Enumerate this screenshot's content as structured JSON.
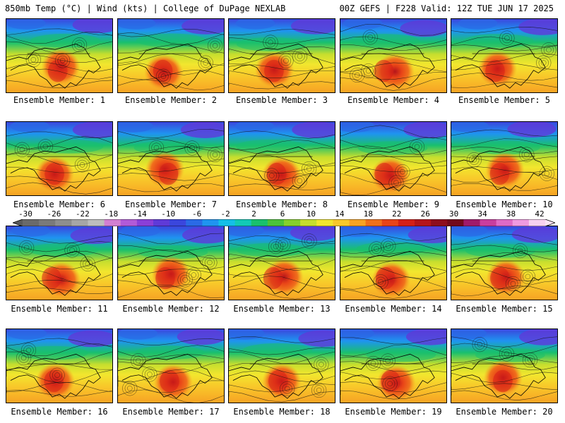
{
  "header": {
    "left_title": "850mb Temp (°C) | Wind (kts) | College of DuPage NEXLAB",
    "right_title": "00Z GEFS | F228 Valid: 12Z TUE JUN 17 2025"
  },
  "colorbar": {
    "labels": [
      "-30",
      "-26",
      "-22",
      "-18",
      "-14",
      "-10",
      "-6",
      "-2",
      "2",
      "6",
      "10",
      "14",
      "18",
      "22",
      "26",
      "30",
      "34",
      "38",
      "42"
    ],
    "colors": [
      "#6a6a6a",
      "#7a7a7a",
      "#8e8e8e",
      "#a6a6a6",
      "#bdbdbd",
      "#d27fd2",
      "#b25ad8",
      "#8a3fd8",
      "#5f3ad8",
      "#3a46dd",
      "#2a6ae6",
      "#1f94f0",
      "#14bfe8",
      "#12c9b6",
      "#19c06d",
      "#4cc23a",
      "#86d02c",
      "#c6de2e",
      "#f2e62e",
      "#f8c82a",
      "#f7a324",
      "#f0701c",
      "#e84318",
      "#d51f17",
      "#b5141a",
      "#8e0d1d",
      "#72091c",
      "#a01a6a",
      "#c93d9e",
      "#e06ac6",
      "#f09ae0",
      "#f8d1f0"
    ]
  },
  "members": [
    {
      "label": "Ensemble Member: 1"
    },
    {
      "label": "Ensemble Member: 2"
    },
    {
      "label": "Ensemble Member: 3"
    },
    {
      "label": "Ensemble Member: 4"
    },
    {
      "label": "Ensemble Member: 5"
    },
    {
      "label": "Ensemble Member: 6"
    },
    {
      "label": "Ensemble Member: 7"
    },
    {
      "label": "Ensemble Member: 8"
    },
    {
      "label": "Ensemble Member: 9"
    },
    {
      "label": "Ensemble Member: 10"
    },
    {
      "label": "Ensemble Member: 11"
    },
    {
      "label": "Ensemble Member: 12"
    },
    {
      "label": "Ensemble Member: 13"
    },
    {
      "label": "Ensemble Member: 14"
    },
    {
      "label": "Ensemble Member: 15"
    },
    {
      "label": "Ensemble Member: 16"
    },
    {
      "label": "Ensemble Member: 17"
    },
    {
      "label": "Ensemble Member: 18"
    },
    {
      "label": "Ensemble Member: 19"
    },
    {
      "label": "Ensemble Member: 20"
    }
  ]
}
